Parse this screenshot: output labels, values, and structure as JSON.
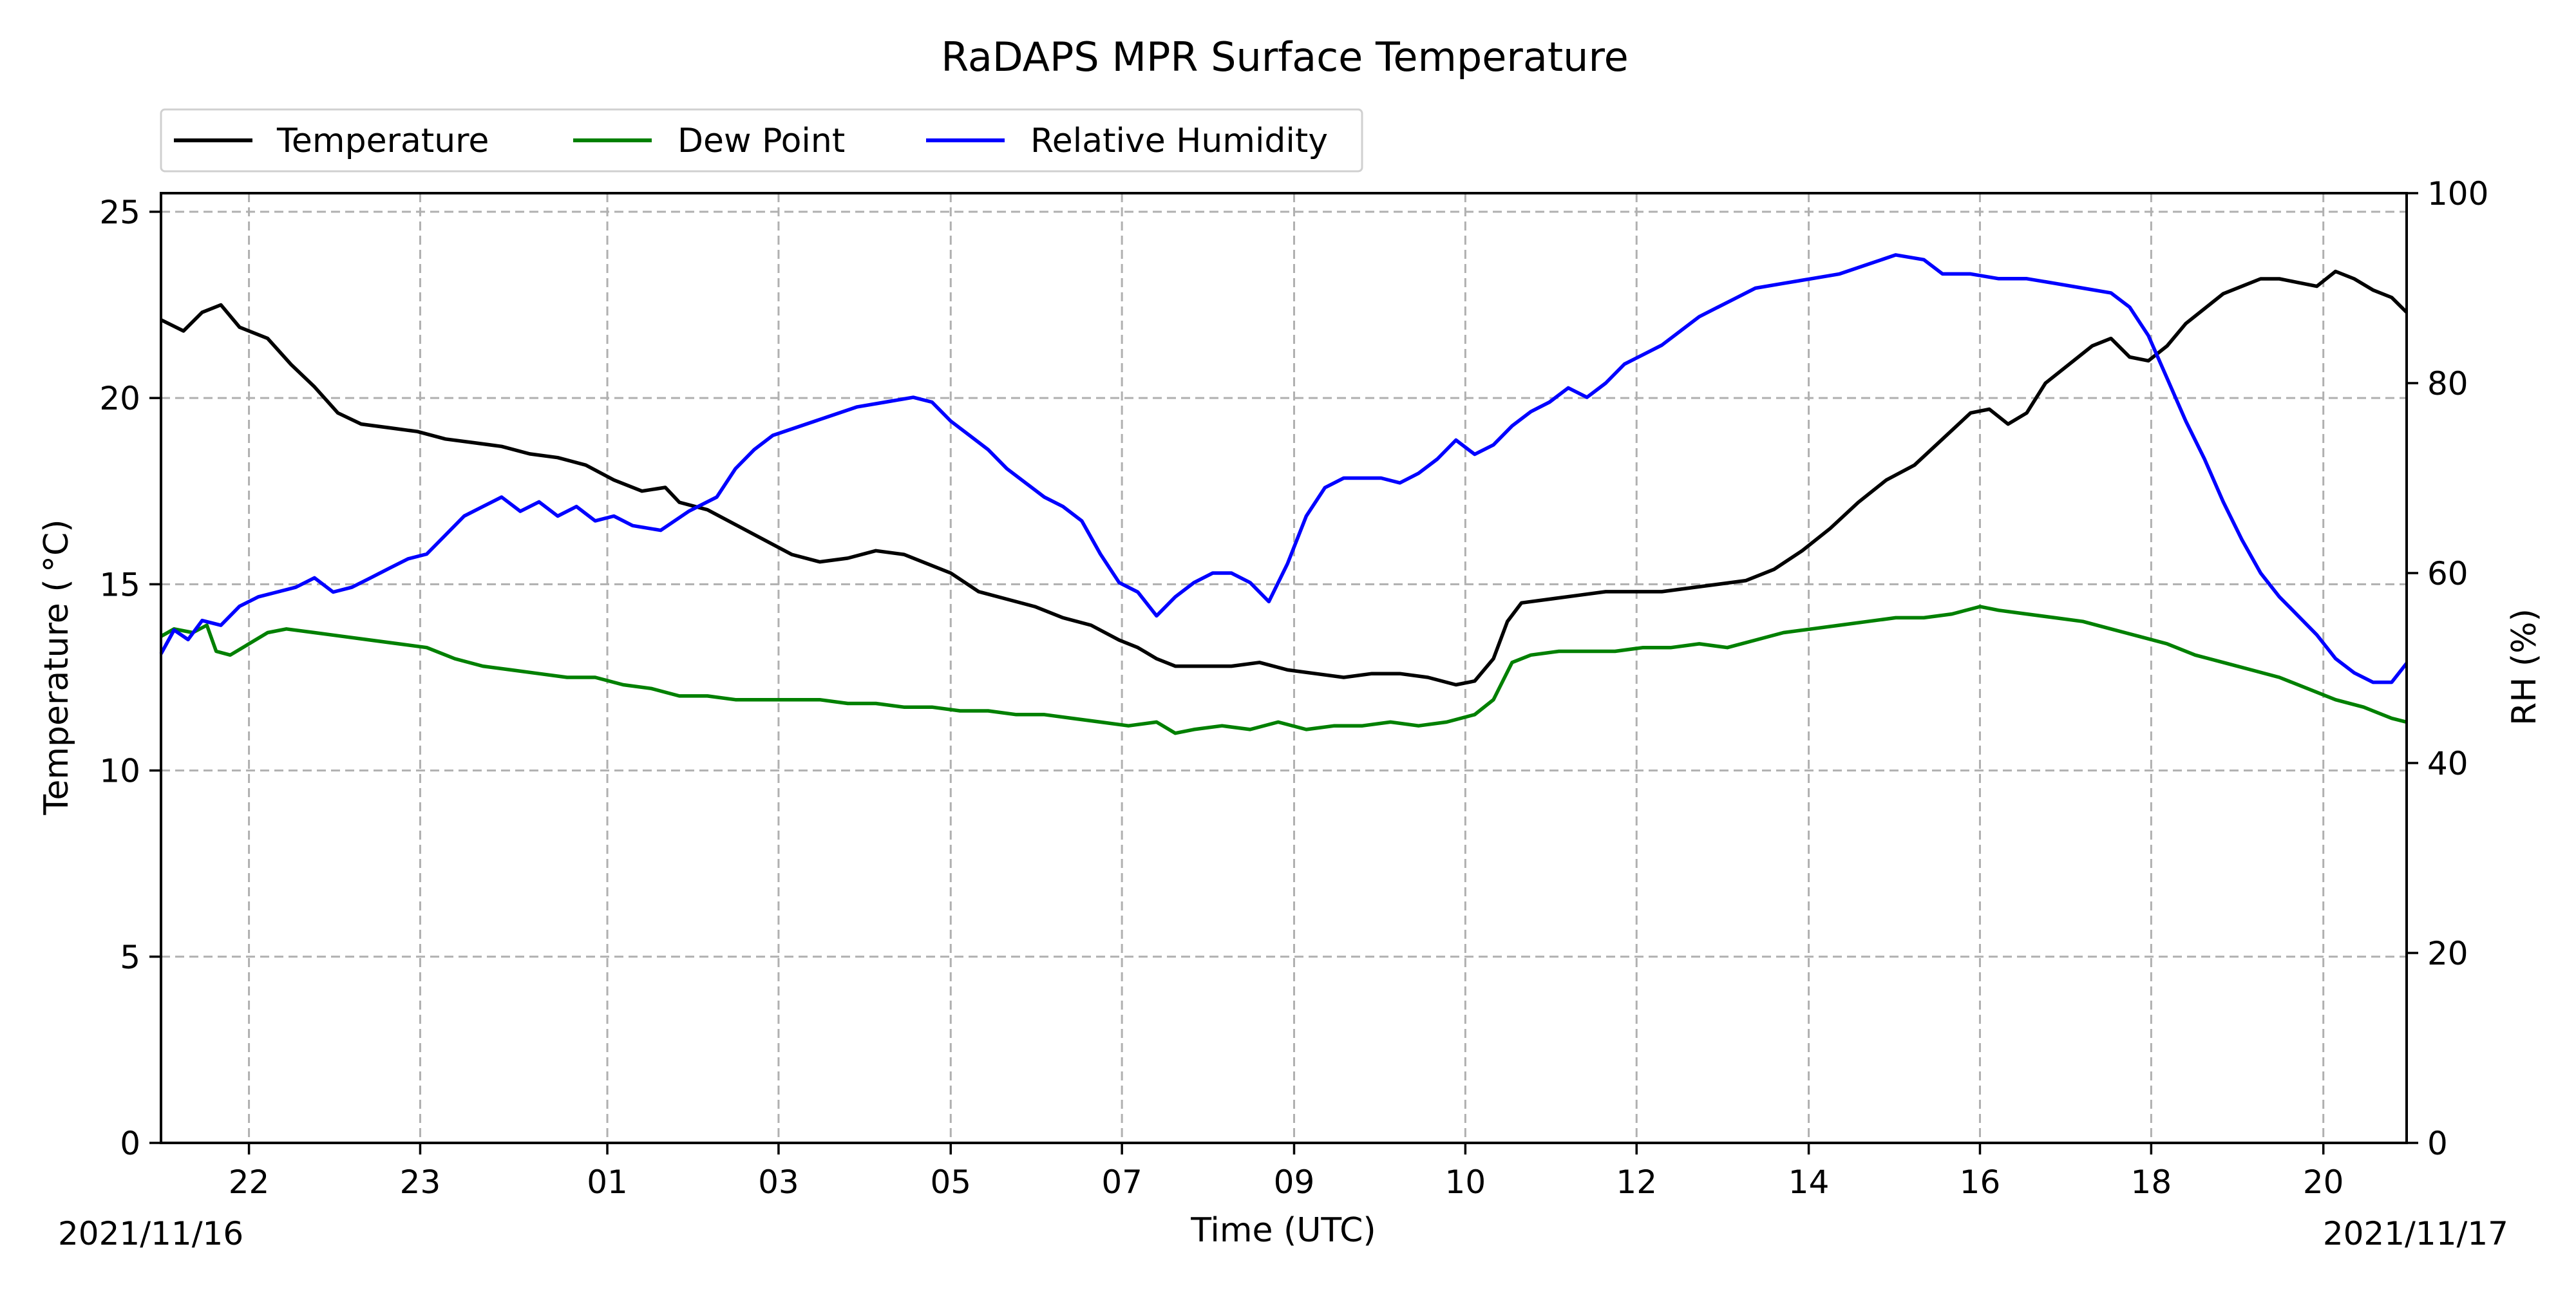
{
  "chart_data": {
    "type": "line",
    "title": "RaDAPS MPR Surface Temperature",
    "xlabel": "Time (UTC)",
    "ylabel_left": "Temperature ($^\\circ$C)",
    "ylabel_left_display": "Temperature ( °C)",
    "ylabel_right": "RH (%)",
    "start_date_label": "2021/11/16",
    "end_date_label": "2021/11/17",
    "xlim_hours": [
      21.06,
      45.06
    ],
    "ylim_left": [
      0,
      25.5
    ],
    "ylim_right": [
      0,
      100
    ],
    "x_ticks": [
      {
        "hours": 22,
        "label": "22"
      },
      {
        "hours": 23.83,
        "label": "23"
      },
      {
        "hours": 25.83,
        "label": "01"
      },
      {
        "hours": 27.66,
        "label": "03"
      },
      {
        "hours": 29.5,
        "label": "05"
      },
      {
        "hours": 31.33,
        "label": "07"
      },
      {
        "hours": 33.17,
        "label": "09"
      },
      {
        "hours": 35,
        "label": "10"
      },
      {
        "hours": 36.83,
        "label": "12"
      },
      {
        "hours": 38.67,
        "label": "14"
      },
      {
        "hours": 40.5,
        "label": "16"
      },
      {
        "hours": 42.33,
        "label": "18"
      },
      {
        "hours": 44.17,
        "label": "20"
      }
    ],
    "y_ticks_left": [
      0,
      5,
      10,
      15,
      20,
      25
    ],
    "y_ticks_right": [
      0,
      20,
      40,
      60,
      80,
      100
    ],
    "grid": true,
    "legend_placement": "top-left, above plot",
    "series": [
      {
        "name": "Temperature",
        "axis": "left",
        "color": "#000000",
        "points": [
          [
            21.06,
            22.1
          ],
          [
            21.3,
            21.8
          ],
          [
            21.5,
            22.3
          ],
          [
            21.7,
            22.5
          ],
          [
            21.9,
            21.9
          ],
          [
            22.2,
            21.6
          ],
          [
            22.45,
            20.9
          ],
          [
            22.7,
            20.3
          ],
          [
            22.95,
            19.6
          ],
          [
            23.2,
            19.3
          ],
          [
            23.5,
            19.2
          ],
          [
            23.8,
            19.1
          ],
          [
            24.1,
            18.9
          ],
          [
            24.4,
            18.8
          ],
          [
            24.7,
            18.7
          ],
          [
            25.0,
            18.5
          ],
          [
            25.3,
            18.4
          ],
          [
            25.6,
            18.2
          ],
          [
            25.9,
            17.8
          ],
          [
            26.2,
            17.5
          ],
          [
            26.45,
            17.6
          ],
          [
            26.6,
            17.2
          ],
          [
            26.9,
            17.0
          ],
          [
            27.2,
            16.6
          ],
          [
            27.5,
            16.2
          ],
          [
            27.8,
            15.8
          ],
          [
            28.1,
            15.6
          ],
          [
            28.4,
            15.7
          ],
          [
            28.7,
            15.9
          ],
          [
            29.0,
            15.8
          ],
          [
            29.3,
            15.5
          ],
          [
            29.5,
            15.3
          ],
          [
            29.8,
            14.8
          ],
          [
            30.1,
            14.6
          ],
          [
            30.4,
            14.4
          ],
          [
            30.7,
            14.1
          ],
          [
            31.0,
            13.9
          ],
          [
            31.3,
            13.5
          ],
          [
            31.5,
            13.3
          ],
          [
            31.7,
            13.0
          ],
          [
            31.9,
            12.8
          ],
          [
            32.2,
            12.8
          ],
          [
            32.5,
            12.8
          ],
          [
            32.8,
            12.9
          ],
          [
            33.1,
            12.7
          ],
          [
            33.4,
            12.6
          ],
          [
            33.7,
            12.5
          ],
          [
            34.0,
            12.6
          ],
          [
            34.3,
            12.6
          ],
          [
            34.6,
            12.5
          ],
          [
            34.9,
            12.3
          ],
          [
            35.1,
            12.4
          ],
          [
            35.3,
            13.0
          ],
          [
            35.45,
            14.0
          ],
          [
            35.6,
            14.5
          ],
          [
            35.9,
            14.6
          ],
          [
            36.2,
            14.7
          ],
          [
            36.5,
            14.8
          ],
          [
            36.8,
            14.8
          ],
          [
            37.1,
            14.8
          ],
          [
            37.4,
            14.9
          ],
          [
            37.7,
            15.0
          ],
          [
            38.0,
            15.1
          ],
          [
            38.3,
            15.4
          ],
          [
            38.6,
            15.9
          ],
          [
            38.9,
            16.5
          ],
          [
            39.2,
            17.2
          ],
          [
            39.5,
            17.8
          ],
          [
            39.8,
            18.2
          ],
          [
            40.1,
            18.9
          ],
          [
            40.4,
            19.6
          ],
          [
            40.6,
            19.7
          ],
          [
            40.8,
            19.3
          ],
          [
            41.0,
            19.6
          ],
          [
            41.2,
            20.4
          ],
          [
            41.5,
            21.0
          ],
          [
            41.7,
            21.4
          ],
          [
            41.9,
            21.6
          ],
          [
            42.1,
            21.1
          ],
          [
            42.3,
            21.0
          ],
          [
            42.5,
            21.4
          ],
          [
            42.7,
            22.0
          ],
          [
            42.9,
            22.4
          ],
          [
            43.1,
            22.8
          ],
          [
            43.3,
            23.0
          ],
          [
            43.5,
            23.2
          ],
          [
            43.7,
            23.2
          ],
          [
            43.9,
            23.1
          ],
          [
            44.1,
            23.0
          ],
          [
            44.3,
            23.4
          ],
          [
            44.5,
            23.2
          ],
          [
            44.7,
            22.9
          ],
          [
            44.9,
            22.7
          ],
          [
            45.06,
            22.3
          ]
        ]
      },
      {
        "name": "Dew Point",
        "axis": "left",
        "color": "#008000",
        "points": [
          [
            21.06,
            13.6
          ],
          [
            21.2,
            13.8
          ],
          [
            21.4,
            13.7
          ],
          [
            21.55,
            13.9
          ],
          [
            21.65,
            13.2
          ],
          [
            21.8,
            13.1
          ],
          [
            22.0,
            13.4
          ],
          [
            22.2,
            13.7
          ],
          [
            22.4,
            13.8
          ],
          [
            22.7,
            13.7
          ],
          [
            23.0,
            13.6
          ],
          [
            23.3,
            13.5
          ],
          [
            23.6,
            13.4
          ],
          [
            23.9,
            13.3
          ],
          [
            24.2,
            13.0
          ],
          [
            24.5,
            12.8
          ],
          [
            24.8,
            12.7
          ],
          [
            25.1,
            12.6
          ],
          [
            25.4,
            12.5
          ],
          [
            25.7,
            12.5
          ],
          [
            26.0,
            12.3
          ],
          [
            26.3,
            12.2
          ],
          [
            26.6,
            12.0
          ],
          [
            26.9,
            12.0
          ],
          [
            27.2,
            11.9
          ],
          [
            27.5,
            11.9
          ],
          [
            27.8,
            11.9
          ],
          [
            28.1,
            11.9
          ],
          [
            28.4,
            11.8
          ],
          [
            28.7,
            11.8
          ],
          [
            29.0,
            11.7
          ],
          [
            29.3,
            11.7
          ],
          [
            29.6,
            11.6
          ],
          [
            29.9,
            11.6
          ],
          [
            30.2,
            11.5
          ],
          [
            30.5,
            11.5
          ],
          [
            30.8,
            11.4
          ],
          [
            31.1,
            11.3
          ],
          [
            31.4,
            11.2
          ],
          [
            31.7,
            11.3
          ],
          [
            31.9,
            11.0
          ],
          [
            32.1,
            11.1
          ],
          [
            32.4,
            11.2
          ],
          [
            32.7,
            11.1
          ],
          [
            33.0,
            11.3
          ],
          [
            33.3,
            11.1
          ],
          [
            33.6,
            11.2
          ],
          [
            33.9,
            11.2
          ],
          [
            34.2,
            11.3
          ],
          [
            34.5,
            11.2
          ],
          [
            34.8,
            11.3
          ],
          [
            35.1,
            11.5
          ],
          [
            35.3,
            11.9
          ],
          [
            35.5,
            12.9
          ],
          [
            35.7,
            13.1
          ],
          [
            36.0,
            13.2
          ],
          [
            36.3,
            13.2
          ],
          [
            36.6,
            13.2
          ],
          [
            36.9,
            13.3
          ],
          [
            37.2,
            13.3
          ],
          [
            37.5,
            13.4
          ],
          [
            37.8,
            13.3
          ],
          [
            38.1,
            13.5
          ],
          [
            38.4,
            13.7
          ],
          [
            38.7,
            13.8
          ],
          [
            39.0,
            13.9
          ],
          [
            39.3,
            14.0
          ],
          [
            39.6,
            14.1
          ],
          [
            39.9,
            14.1
          ],
          [
            40.2,
            14.2
          ],
          [
            40.5,
            14.4
          ],
          [
            40.7,
            14.3
          ],
          [
            41.0,
            14.2
          ],
          [
            41.3,
            14.1
          ],
          [
            41.6,
            14.0
          ],
          [
            41.9,
            13.8
          ],
          [
            42.2,
            13.6
          ],
          [
            42.5,
            13.4
          ],
          [
            42.8,
            13.1
          ],
          [
            43.1,
            12.9
          ],
          [
            43.4,
            12.7
          ],
          [
            43.7,
            12.5
          ],
          [
            44.0,
            12.2
          ],
          [
            44.3,
            11.9
          ],
          [
            44.6,
            11.7
          ],
          [
            44.9,
            11.4
          ],
          [
            45.06,
            11.3
          ]
        ]
      },
      {
        "name": "Relative Humidity",
        "axis": "right",
        "color": "#0000ff",
        "points": [
          [
            21.06,
            51.5
          ],
          [
            21.2,
            54.0
          ],
          [
            21.35,
            53.0
          ],
          [
            21.5,
            55.0
          ],
          [
            21.7,
            54.5
          ],
          [
            21.9,
            56.5
          ],
          [
            22.1,
            57.5
          ],
          [
            22.3,
            58.0
          ],
          [
            22.5,
            58.5
          ],
          [
            22.7,
            59.5
          ],
          [
            22.9,
            58.0
          ],
          [
            23.1,
            58.5
          ],
          [
            23.3,
            59.5
          ],
          [
            23.5,
            60.5
          ],
          [
            23.7,
            61.5
          ],
          [
            23.9,
            62.0
          ],
          [
            24.1,
            64.0
          ],
          [
            24.3,
            66.0
          ],
          [
            24.5,
            67.0
          ],
          [
            24.7,
            68.0
          ],
          [
            24.9,
            66.5
          ],
          [
            25.1,
            67.5
          ],
          [
            25.3,
            66.0
          ],
          [
            25.5,
            67.0
          ],
          [
            25.7,
            65.5
          ],
          [
            25.9,
            66.0
          ],
          [
            26.1,
            65.0
          ],
          [
            26.4,
            64.5
          ],
          [
            26.7,
            66.5
          ],
          [
            27.0,
            68.0
          ],
          [
            27.2,
            71.0
          ],
          [
            27.4,
            73.0
          ],
          [
            27.6,
            74.5
          ],
          [
            27.9,
            75.5
          ],
          [
            28.2,
            76.5
          ],
          [
            28.5,
            77.5
          ],
          [
            28.8,
            78.0
          ],
          [
            29.1,
            78.5
          ],
          [
            29.3,
            78.0
          ],
          [
            29.5,
            76.0
          ],
          [
            29.7,
            74.5
          ],
          [
            29.9,
            73.0
          ],
          [
            30.1,
            71.0
          ],
          [
            30.3,
            69.5
          ],
          [
            30.5,
            68.0
          ],
          [
            30.7,
            67.0
          ],
          [
            30.9,
            65.5
          ],
          [
            31.1,
            62.0
          ],
          [
            31.3,
            59.0
          ],
          [
            31.5,
            58.0
          ],
          [
            31.7,
            55.5
          ],
          [
            31.9,
            57.5
          ],
          [
            32.1,
            59.0
          ],
          [
            32.3,
            60.0
          ],
          [
            32.5,
            60.0
          ],
          [
            32.7,
            59.0
          ],
          [
            32.9,
            57.0
          ],
          [
            33.1,
            61.0
          ],
          [
            33.3,
            66.0
          ],
          [
            33.5,
            69.0
          ],
          [
            33.7,
            70.0
          ],
          [
            33.9,
            70.0
          ],
          [
            34.1,
            70.0
          ],
          [
            34.3,
            69.5
          ],
          [
            34.5,
            70.5
          ],
          [
            34.7,
            72.0
          ],
          [
            34.9,
            74.0
          ],
          [
            35.1,
            72.5
          ],
          [
            35.3,
            73.5
          ],
          [
            35.5,
            75.5
          ],
          [
            35.7,
            77.0
          ],
          [
            35.9,
            78.0
          ],
          [
            36.1,
            79.5
          ],
          [
            36.3,
            78.5
          ],
          [
            36.5,
            80.0
          ],
          [
            36.7,
            82.0
          ],
          [
            36.9,
            83.0
          ],
          [
            37.1,
            84.0
          ],
          [
            37.3,
            85.5
          ],
          [
            37.5,
            87.0
          ],
          [
            37.7,
            88.0
          ],
          [
            37.9,
            89.0
          ],
          [
            38.1,
            90.0
          ],
          [
            38.4,
            90.5
          ],
          [
            38.7,
            91.0
          ],
          [
            39.0,
            91.5
          ],
          [
            39.3,
            92.5
          ],
          [
            39.6,
            93.5
          ],
          [
            39.9,
            93.0
          ],
          [
            40.1,
            91.5
          ],
          [
            40.4,
            91.5
          ],
          [
            40.7,
            91.0
          ],
          [
            41.0,
            91.0
          ],
          [
            41.3,
            90.5
          ],
          [
            41.6,
            90.0
          ],
          [
            41.9,
            89.5
          ],
          [
            42.1,
            88.0
          ],
          [
            42.3,
            85.0
          ],
          [
            42.5,
            80.5
          ],
          [
            42.7,
            76.0
          ],
          [
            42.9,
            72.0
          ],
          [
            43.1,
            67.5
          ],
          [
            43.3,
            63.5
          ],
          [
            43.5,
            60.0
          ],
          [
            43.7,
            57.5
          ],
          [
            43.9,
            55.5
          ],
          [
            44.1,
            53.5
          ],
          [
            44.3,
            51.0
          ],
          [
            44.5,
            49.5
          ],
          [
            44.7,
            48.5
          ],
          [
            44.9,
            48.5
          ],
          [
            45.06,
            50.5
          ]
        ]
      }
    ]
  }
}
